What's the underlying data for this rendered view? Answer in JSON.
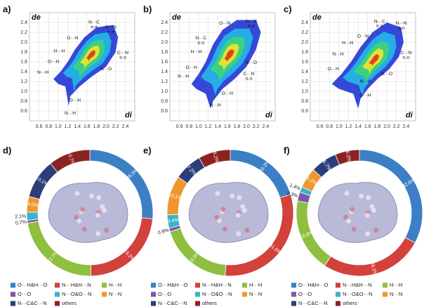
{
  "chart_data": [
    {
      "type": "fingerprint",
      "label": "a)",
      "xlabel": "di",
      "ylabel": "de",
      "xlim": [
        0.4,
        2.6
      ],
      "ylim": [
        0.4,
        2.6
      ],
      "xticks": [
        0.6,
        0.8,
        {
          "value": 1,
          "label": "1.0"
        },
        1.2,
        1.4,
        1.6,
        1.8,
        {
          "value": 2,
          "label": "2.0"
        },
        2.2,
        2.4
      ],
      "yticks": [
        2.4,
        2.2,
        {
          "value": 2,
          "label": "2.0"
        },
        1.8,
        1.6,
        1.4,
        1.2,
        {
          "value": 1,
          "label": "1.0"
        },
        0.8,
        0.6
      ],
      "annotations": [
        {
          "text": "N···C",
          "note": "π-π"
        },
        {
          "text": "N···N",
          "note": "π-π"
        },
        {
          "text": "O···N"
        },
        {
          "text": "C···N",
          "note": "π-π"
        },
        {
          "text": "H···H"
        },
        {
          "text": "O···H"
        },
        {
          "text": "N···H"
        },
        {
          "text": "N···O"
        },
        {
          "text": "O···H"
        },
        {
          "text": "N···H"
        }
      ]
    },
    {
      "type": "fingerprint",
      "label": "b)",
      "xlabel": "di",
      "ylabel": "de",
      "xlim": [
        0.4,
        2.6
      ],
      "ylim": [
        0.4,
        2.6
      ],
      "xticks": [
        0.6,
        0.8,
        {
          "value": 1,
          "label": "1.0"
        },
        1.2,
        1.4,
        1.6,
        1.8,
        {
          "value": 2,
          "label": "2.0"
        },
        2.2,
        2.4
      ],
      "yticks": [
        2.4,
        2.2,
        {
          "value": 2,
          "label": "2.0"
        },
        1.8,
        1.6,
        1.4,
        1.2,
        {
          "value": 1,
          "label": "1.0"
        },
        0.8,
        0.6
      ],
      "annotations": [
        {
          "text": "N···N",
          "note": "π-π"
        },
        {
          "text": "O···N"
        },
        {
          "text": "N···C",
          "note": "π-π"
        },
        {
          "text": "H···H"
        },
        {
          "text": "O···H"
        },
        {
          "text": "N···H"
        },
        {
          "text": "N···O"
        },
        {
          "text": "C···N",
          "note": "π-π"
        },
        {
          "text": "O···H"
        },
        {
          "text": "N···H"
        }
      ]
    },
    {
      "type": "fingerprint",
      "label": "c)",
      "xlabel": "di",
      "ylabel": "de",
      "xlim": [
        0.4,
        2.6
      ],
      "ylim": [
        0.4,
        2.6
      ],
      "xticks": [
        0.6,
        0.8,
        {
          "value": 1,
          "label": "1.0"
        },
        1.2,
        1.4,
        1.6,
        1.8,
        {
          "value": 2,
          "label": "2.0"
        },
        2.2,
        2.4
      ],
      "yticks": [
        2.4,
        2.2,
        {
          "value": 2,
          "label": "2.0"
        },
        1.8,
        1.6,
        1.4,
        1.2,
        {
          "value": 1,
          "label": "1.0"
        },
        0.8,
        0.6
      ],
      "annotations": [
        {
          "text": "N···C",
          "note": "π-π"
        },
        {
          "text": "N···N",
          "note": "π-π"
        },
        {
          "text": "O···N"
        },
        {
          "text": "H···H"
        },
        {
          "text": "N···H"
        },
        {
          "text": "C···N",
          "note": "π-π"
        },
        {
          "text": "O···H"
        },
        {
          "text": "N···O"
        },
        {
          "text": "N···H"
        },
        {
          "text": "O···H"
        }
      ]
    },
    {
      "type": "donut",
      "label": "d)",
      "categories": [
        "O···H&H···O",
        "N···H&H···N",
        "H···H",
        "O···O",
        "N···O&O···N",
        "N···N",
        "N···C&C···N",
        "others"
      ],
      "colors": [
        "#3c7fc4",
        "#d2413b",
        "#8fbf3f",
        "#7a5aa8",
        "#3bb3c8",
        "#f0962f",
        "#2c3e7a",
        "#8c2222"
      ],
      "values": [
        26.5,
        23.2,
        22.7,
        0.7,
        2.1,
        4.0,
        10.1,
        10.7
      ],
      "value_labels": [
        "26.5%",
        "23.2%",
        "22.7%",
        "0.7%",
        "2.1%",
        "4.0%",
        "10.1%",
        "10.7%"
      ]
    },
    {
      "type": "donut",
      "label": "e)",
      "categories": [
        "O···H&H···O",
        "N···H&H···N",
        "H···H",
        "O···O",
        "N···O&O···N",
        "N···N",
        "N···C&C···N",
        "others"
      ],
      "colors": [
        "#3c7fc4",
        "#d2413b",
        "#8fbf3f",
        "#7a5aa8",
        "#3bb3c8",
        "#f0962f",
        "#2c3e7a",
        "#8c2222"
      ],
      "values": [
        20.3,
        31.0,
        18.9,
        0.9,
        3.4,
        10.1,
        7.2,
        8.2
      ],
      "value_labels": [
        "20.3%",
        "31.0%",
        "18.9%",
        "0.9%",
        "3.4%",
        "10.1%",
        "7.2%",
        "8.2%"
      ]
    },
    {
      "type": "donut",
      "label": "f)",
      "categories": [
        "O···H&H···O",
        "N···H&H···N",
        "H···H",
        "O···O",
        "N···O&O···N",
        "N···N",
        "N···C&C···N",
        "others"
      ],
      "colors": [
        "#3c7fc4",
        "#d2413b",
        "#8fbf3f",
        "#7a5aa8",
        "#3bb3c8",
        "#f0962f",
        "#2c3e7a",
        "#8c2222"
      ],
      "values": [
        32.6,
        26.2,
        18.6,
        2.3,
        1.4,
        5.2,
        6.7,
        6.2
      ],
      "value_labels": [
        "32.6%",
        "26.2%",
        "18.6%",
        "2.3%",
        "1.4%",
        "5.2%",
        "6.7%",
        "6.2%"
      ]
    }
  ]
}
